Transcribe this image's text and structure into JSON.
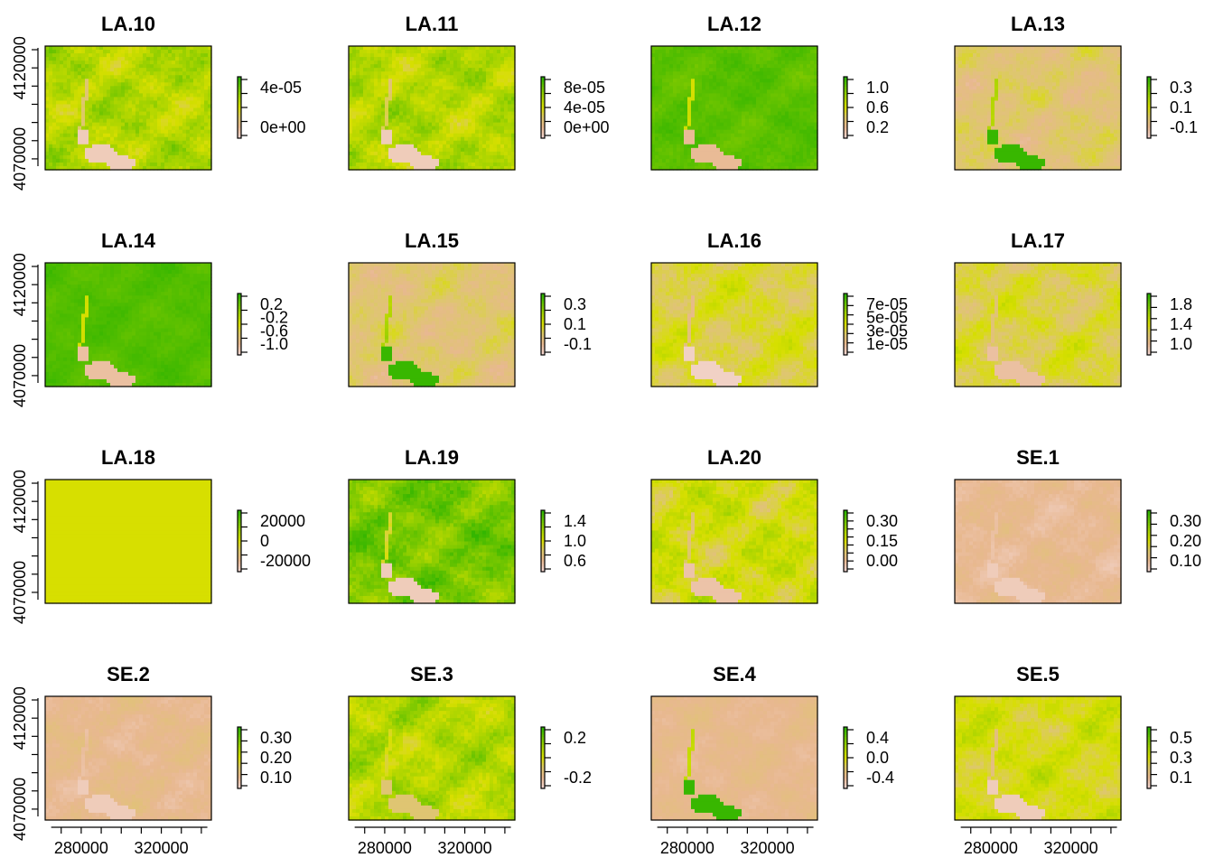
{
  "chart_data": {
    "type": "heatmap",
    "layout": "4x4 grid of raster maps with individual color legends",
    "palette": [
      "#f2d4cc",
      "#e8b890",
      "#ddc86a",
      "#d7df00",
      "#a8d400",
      "#6cc400",
      "#2db400"
    ],
    "x_axis": {
      "ticks": [
        280000,
        320000
      ],
      "tick_labels": [
        "280000",
        "320000"
      ]
    },
    "y_axis": {
      "ticks": [
        4070000,
        4120000
      ],
      "tick_labels": [
        "4070000",
        "4120000"
      ]
    },
    "panels": [
      {
        "title": "LA.10",
        "base": 0.62,
        "noise": 0.2,
        "lake": 0.05,
        "legend_labels": [
          "4e-05",
          "0e+00"
        ],
        "legend_ticks": 5
      },
      {
        "title": "LA.11",
        "base": 0.62,
        "noise": 0.2,
        "lake": 0.05,
        "legend_labels": [
          "8e-05",
          "4e-05",
          "0e+00"
        ],
        "legend_ticks": 5
      },
      {
        "title": "LA.12",
        "base": 0.88,
        "noise": 0.08,
        "lake": 0.15,
        "legend_labels": [
          "1.0",
          "0.6",
          "0.2"
        ],
        "legend_ticks": 5
      },
      {
        "title": "LA.13",
        "base": 0.3,
        "noise": 0.14,
        "lake": 0.97,
        "legend_labels": [
          "0.3",
          "0.1",
          "-0.1"
        ],
        "legend_ticks": 5
      },
      {
        "title": "LA.14",
        "base": 0.9,
        "noise": 0.06,
        "lake": 0.12,
        "legend_labels": [
          "0.2",
          "-0.2",
          "-0.6",
          "-1.0"
        ],
        "legend_ticks": 5
      },
      {
        "title": "LA.15",
        "base": 0.3,
        "noise": 0.14,
        "lake": 0.97,
        "legend_labels": [
          "0.3",
          "0.1",
          "-0.1"
        ],
        "legend_ticks": 5
      },
      {
        "title": "LA.16",
        "base": 0.42,
        "noise": 0.16,
        "lake": 0.02,
        "legend_labels": [
          "7e-05",
          "5e-05",
          "3e-05",
          "1e-05"
        ],
        "legend_ticks": 7
      },
      {
        "title": "LA.17",
        "base": 0.4,
        "noise": 0.16,
        "lake": 0.12,
        "legend_labels": [
          "1.8",
          "1.4",
          "1.0"
        ],
        "legend_ticks": 6
      },
      {
        "title": "LA.18",
        "base": 0.5,
        "noise": 0.0,
        "lake": 0.5,
        "legend_labels": [
          "20000",
          "0",
          "-20000"
        ],
        "legend_ticks": 5
      },
      {
        "title": "LA.19",
        "base": 0.8,
        "noise": 0.18,
        "lake": 0.05,
        "legend_labels": [
          "1.4",
          "1.0",
          "0.6"
        ],
        "legend_ticks": 5
      },
      {
        "title": "LA.20",
        "base": 0.5,
        "noise": 0.2,
        "lake": 0.1,
        "legend_labels": [
          "0.30",
          "0.15",
          "0.00"
        ],
        "legend_ticks": 8
      },
      {
        "title": "SE.1",
        "base": 0.16,
        "noise": 0.08,
        "lake": 0.05,
        "legend_labels": [
          "0.30",
          "0.20",
          "0.10"
        ],
        "legend_ticks": 6
      },
      {
        "title": "SE.2",
        "base": 0.18,
        "noise": 0.08,
        "lake": 0.05,
        "legend_labels": [
          "0.30",
          "0.20",
          "0.10"
        ],
        "legend_ticks": 6
      },
      {
        "title": "SE.3",
        "base": 0.62,
        "noise": 0.2,
        "lake": 0.3,
        "legend_labels": [
          "0.2",
          "-0.2"
        ],
        "legend_ticks": 5
      },
      {
        "title": "SE.4",
        "base": 0.18,
        "noise": 0.06,
        "lake": 0.97,
        "legend_labels": [
          "0.4",
          "0.0",
          "-0.4"
        ],
        "legend_ticks": 5
      },
      {
        "title": "SE.5",
        "base": 0.48,
        "noise": 0.16,
        "lake": 0.05,
        "legend_labels": [
          "0.5",
          "0.3",
          "0.1"
        ],
        "legend_ticks": 6
      }
    ]
  }
}
